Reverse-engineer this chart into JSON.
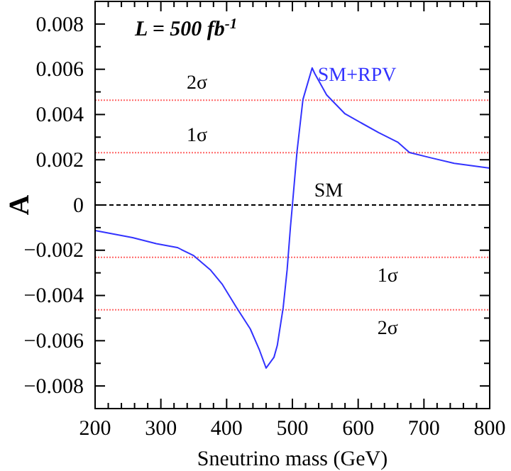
{
  "chart_data": {
    "type": "line",
    "xlabel": "Sneutrino mass (GeV)",
    "ylabel": "A",
    "annotations": [
      "L = 500 fb$^{-1}$"
    ],
    "series": [
      {
        "name": "SM+RPV",
        "color": "#3333ff",
        "x": [
          200,
          257,
          293,
          325,
          350,
          375,
          393,
          415,
          436,
          450,
          460,
          472,
          477,
          486,
          492,
          497,
          500,
          507,
          516,
          530,
          534,
          552,
          580,
          631,
          660,
          678,
          710,
          746,
          800
        ],
        "values": [
          -0.00113,
          -0.00144,
          -0.00171,
          -0.00188,
          -0.00224,
          -0.00286,
          -0.00349,
          -0.00453,
          -0.00548,
          -0.00642,
          -0.00721,
          -0.00673,
          -0.00621,
          -0.00453,
          -0.00286,
          -0.00098,
          0,
          0.00236,
          0.00466,
          0.00606,
          0.00581,
          0.00487,
          0.00403,
          0.0032,
          0.00278,
          0.00232,
          0.00209,
          0.00184,
          0.00163
        ]
      }
    ],
    "ref_lines": [
      {
        "axis": "y",
        "value": 0,
        "label": "SM",
        "color": "#000000",
        "line_style": "dashed"
      },
      {
        "axis": "y",
        "value": 0.00463,
        "label": "2σ",
        "color": "#ff6666",
        "line_style": "dotted"
      },
      {
        "axis": "y",
        "value": 0.00231,
        "label": "1σ",
        "color": "#ff6666",
        "line_style": "dotted"
      },
      {
        "axis": "y",
        "value": -0.00231,
        "label": "1σ",
        "color": "#ff6666",
        "line_style": "dotted"
      },
      {
        "axis": "y",
        "value": -0.00463,
        "label": "2σ",
        "color": "#ff6666",
        "line_style": "dotted"
      }
    ],
    "xlim": [
      200,
      800
    ],
    "ylim": [
      -0.009,
      0.009
    ],
    "xticks": [
      200,
      {
        "value": 220,
        "label": null
      },
      {
        "value": 240,
        "label": null
      },
      {
        "value": 260,
        "label": null
      },
      {
        "value": 280,
        "label": null
      },
      300,
      {
        "value": 320,
        "label": null
      },
      {
        "value": 340,
        "label": null
      },
      {
        "value": 360,
        "label": null
      },
      {
        "value": 380,
        "label": null
      },
      400,
      {
        "value": 420,
        "label": null
      },
      {
        "value": 440,
        "label": null
      },
      {
        "value": 460,
        "label": null
      },
      {
        "value": 480,
        "label": null
      },
      500,
      {
        "value": 520,
        "label": null
      },
      {
        "value": 540,
        "label": null
      },
      {
        "value": 560,
        "label": null
      },
      {
        "value": 580,
        "label": null
      },
      600,
      {
        "value": 620,
        "label": null
      },
      {
        "value": 640,
        "label": null
      },
      {
        "value": 660,
        "label": null
      },
      {
        "value": 680,
        "label": null
      },
      700,
      {
        "value": 720,
        "label": null
      },
      {
        "value": 740,
        "label": null
      },
      {
        "value": 760,
        "label": null
      },
      {
        "value": 780,
        "label": null
      },
      800
    ],
    "yticks": [
      {
        "value": -0.009,
        "label": null
      },
      {
        "value": -0.008,
        "label": "−0.008"
      },
      {
        "value": -0.007,
        "label": null
      },
      {
        "value": -0.006,
        "label": "−0.006"
      },
      {
        "value": -0.005,
        "label": null
      },
      {
        "value": -0.004,
        "label": "−0.004"
      },
      {
        "value": -0.003,
        "label": null
      },
      {
        "value": -0.002,
        "label": "−0.002"
      },
      {
        "value": -0.001,
        "label": null
      },
      0,
      {
        "value": 0.001,
        "label": null
      },
      {
        "value": 0.002,
        "label": "0.002"
      },
      {
        "value": 0.003,
        "label": null
      },
      {
        "value": 0.004,
        "label": "0.004"
      },
      {
        "value": 0.005,
        "label": null
      },
      {
        "value": 0.006,
        "label": "0.006"
      },
      {
        "value": 0.007,
        "label": null
      },
      {
        "value": 0.008,
        "label": "0.008"
      },
      {
        "value": 0.009,
        "label": null
      }
    ],
    "grid": false,
    "legend": false,
    "marker": "none",
    "line_style": "solid"
  }
}
